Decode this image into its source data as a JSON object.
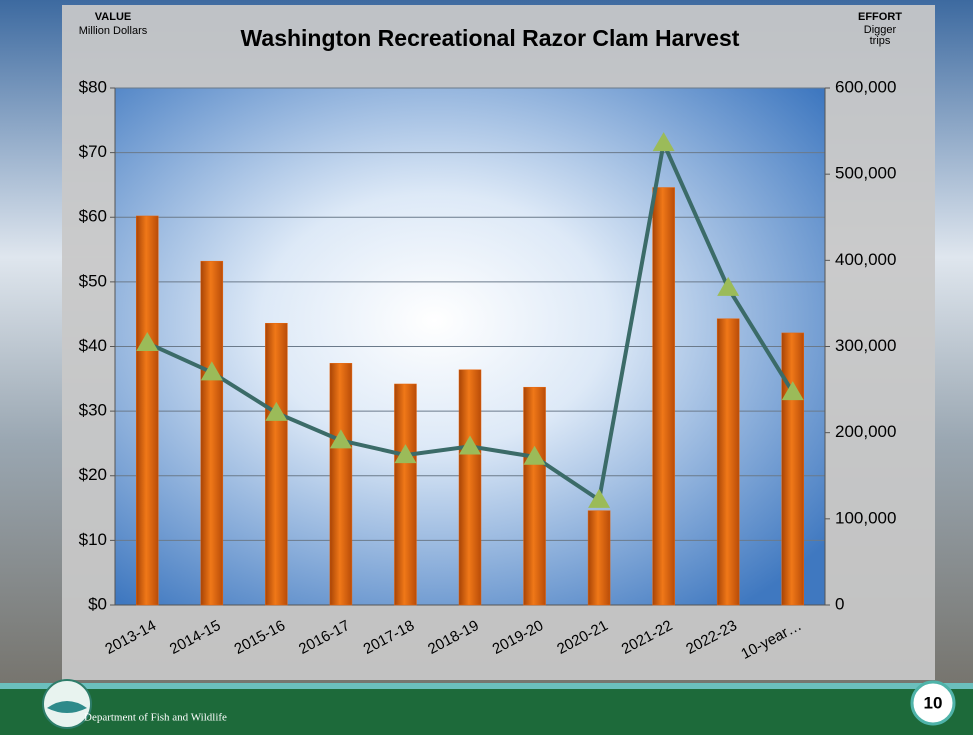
{
  "chart_data": {
    "type": "combo",
    "title": "Washington Recreational Razor Clam Harvest",
    "y_label": "VALUE",
    "y_unit": "Million Dollars",
    "y2_label": "EFFORT",
    "y2_unit": [
      "Digger",
      "trips"
    ],
    "categories": [
      "2013-14",
      "2014-15",
      "2015-16",
      "2016-17",
      "2017-18",
      "2018-19",
      "2019-20",
      "2020-21",
      "2021-22",
      "2022-23",
      "10-year…"
    ],
    "series": [
      {
        "kind": "bar",
        "color": "#e8650c",
        "values": [
          60.2,
          53.2,
          43.6,
          37.4,
          34.2,
          36.4,
          33.7,
          14.6,
          64.6,
          44.3,
          42.1
        ]
      },
      {
        "kind": "line",
        "axis": "y2",
        "color": "#3b6b68",
        "marker_color": "#9bbb59",
        "values": [
          304000,
          270000,
          223000,
          191000,
          174000,
          184000,
          172000,
          122000,
          536000,
          368000,
          247000
        ]
      }
    ],
    "ylim": [
      0,
      80
    ],
    "yticks": [
      {
        "value": 0,
        "label": "$0"
      },
      {
        "value": 10,
        "label": "$10"
      },
      {
        "value": 20,
        "label": "$20"
      },
      {
        "value": 30,
        "label": "$30"
      },
      {
        "value": 40,
        "label": "$40"
      },
      {
        "value": 50,
        "label": "$50"
      },
      {
        "value": 60,
        "label": "$60"
      },
      {
        "value": 70,
        "label": "$70"
      },
      {
        "value": 80,
        "label": "$80"
      }
    ],
    "y2lim": [
      0,
      600000
    ],
    "y2ticks": [
      0,
      {
        "value": 100000,
        "label": "100,000"
      },
      {
        "value": 200000,
        "label": "200,000"
      },
      {
        "value": 300000,
        "label": "300,000"
      },
      {
        "value": 400000,
        "label": "400,000"
      },
      {
        "value": 500000,
        "label": "500,000"
      },
      {
        "value": 600000,
        "label": "600,000"
      }
    ],
    "grid": true
  },
  "footer": {
    "organization": "Department of Fish and Wildlife",
    "page_number": "10"
  }
}
